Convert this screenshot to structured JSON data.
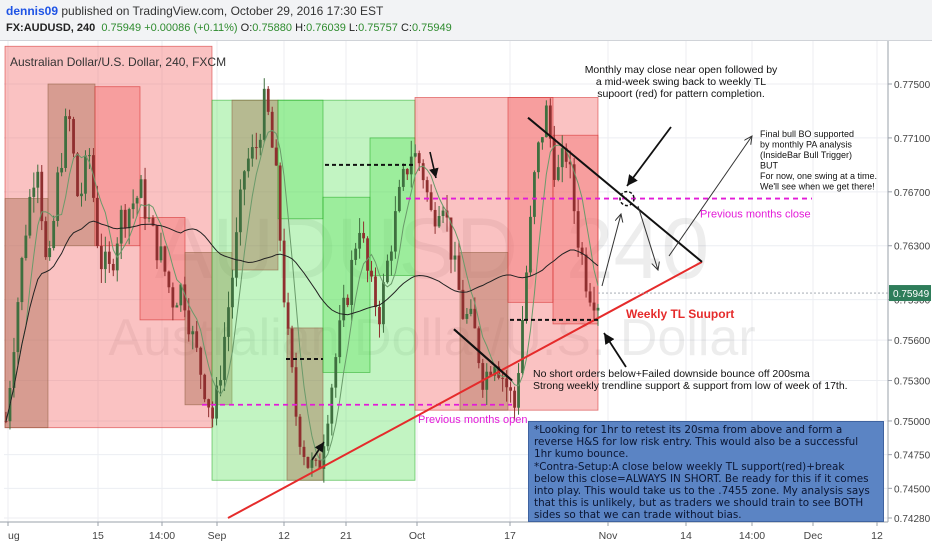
{
  "header": {
    "author": "dennis09",
    "published_text": "published on TradingView.com, October 29, 2016 17:30 EST",
    "symbol": "FX:AUDUSD, 240",
    "last_price": "0.75949",
    "change": "+0.00086 (+0.11%)",
    "open_label": "O:",
    "open_value": "0.75880",
    "high_label": "H:",
    "high_value": "0.76039",
    "low_label": "L:",
    "low_value": "0.75757",
    "close_label": "C:",
    "close_value": "0.75949"
  },
  "chart_data": {
    "type": "candlestick",
    "title": "Australian Dollar/U.S. Dollar, 240, FXCM",
    "watermark_symbol": "AUDUSD, 240",
    "watermark_name": "Australian Dollar/U.S. Dollar",
    "x_ticks": [
      "ug",
      "15",
      "14:00",
      "Sep",
      "12",
      "21",
      "Oct",
      "17",
      "Nov",
      "14",
      "14:00",
      "Dec",
      "12"
    ],
    "y_ticks": [
      "0.77500",
      "0.77100",
      "0.76700",
      "0.76300",
      "0.75900",
      "0.75600",
      "0.75300",
      "0.75000",
      "0.74750",
      "0.74500",
      "0.74280"
    ],
    "ylim": [
      0.7422,
      0.779
    ],
    "last_price_label": "0.75949",
    "last_price": 0.75949,
    "grid": true,
    "colors": {
      "up": "#3f6f3f",
      "down": "#8f2f2f",
      "bull_box": "#5fe35f",
      "bear_box": "#f36d6d",
      "trendline": "#e52b2b",
      "dashed_level": "#e31bd8"
    },
    "levels": {
      "previous_months_close": 0.7665,
      "previous_months_open": 0.7512,
      "weekly_tl_start": 0.7428,
      "weekly_tl_end": 0.7618
    },
    "path_points": [
      0.75,
      0.758,
      0.765,
      0.77,
      0.76,
      0.768,
      0.773,
      0.766,
      0.77,
      0.762,
      0.761,
      0.765,
      0.766,
      0.767,
      0.764,
      0.762,
      0.759,
      0.76,
      0.756,
      0.753,
      0.75,
      0.756,
      0.762,
      0.769,
      0.77,
      0.774,
      0.768,
      0.757,
      0.75,
      0.747,
      0.746,
      0.751,
      0.756,
      0.76,
      0.765,
      0.76,
      0.758,
      0.763,
      0.767,
      0.77,
      0.769,
      0.765,
      0.767,
      0.762,
      0.758,
      0.757,
      0.753,
      0.755,
      0.753,
      0.751,
      0.76,
      0.769,
      0.773,
      0.768,
      0.77,
      0.764,
      0.76,
      0.759
    ]
  },
  "annotations": {
    "monthly_note": [
      "Monthly may close near open followed by",
      "a mid-week swing back to weekly TL",
      "supoort (red) for pattern completion."
    ],
    "final_bull_note": [
      "Final bull BO supported",
      "by monthly PA analysis",
      "(InsideBar Bull Trigger)",
      "BUT",
      "For now, one swing at a time.",
      "We'll see when we get there!"
    ],
    "previous_months_close": "Previous months close",
    "previous_months_open": "Previous months open",
    "weekly_tl": "Weekly TL Suuport",
    "no_short_note": [
      "No short orders below+Failed downside bounce off 200sma",
      "Strong weekly trendline support & support from low of week of 17th."
    ]
  },
  "note_box": {
    "paragraph_1": "*Looking for 1hr to retest its 20sma from above and form a reverse H&S for low risk entry. This would also be a successful 1hr kumo bounce.",
    "paragraph_2": "*Contra-Setup:A close below weekly TL support(red)+break below this close=ALWAYS IN SHORT. Be ready for this if it comes into play. This would take us to the .7455 zone. My analysis says that this is unlikely, but as traders we should train to see BOTH sides so that we can trade without bias."
  }
}
